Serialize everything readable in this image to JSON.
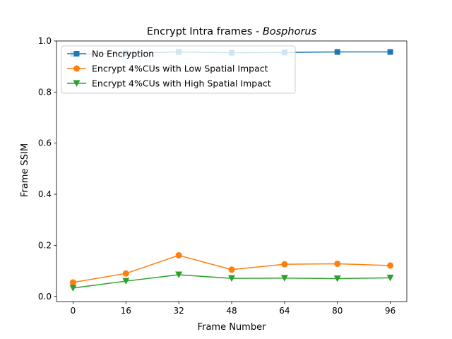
{
  "chart_data": {
    "type": "line",
    "title_prefix": "Encrypt Intra frames - ",
    "title_italic": "Bosphorus",
    "xlabel": "Frame Number",
    "ylabel": "Frame SSIM",
    "x": [
      0,
      16,
      32,
      48,
      64,
      80,
      96
    ],
    "x_ticks": [
      0,
      16,
      32,
      48,
      64,
      80,
      96
    ],
    "y_ticks": [
      "0.0",
      "0.2",
      "0.4",
      "0.6",
      "0.8",
      "1.0"
    ],
    "xlim": [
      -5,
      101
    ],
    "ylim": [
      -0.02,
      1.0
    ],
    "grid": false,
    "legend_position": "upper-left",
    "series": [
      {
        "name": "No Encryption",
        "marker": "square",
        "color": "#1f77b4",
        "values": [
          0.948,
          0.952,
          0.957,
          0.954,
          0.955,
          0.957,
          0.957
        ]
      },
      {
        "name": "Encrypt 4%CUs with Low Spatial Impact",
        "marker": "circle",
        "color": "#ff7f0e",
        "values": [
          0.055,
          0.09,
          0.161,
          0.105,
          0.126,
          0.128,
          0.121
        ]
      },
      {
        "name": "Encrypt 4%CUs with High Spatial Impact",
        "marker": "triangle-down",
        "color": "#2ca02c",
        "values": [
          0.033,
          0.06,
          0.085,
          0.071,
          0.072,
          0.07,
          0.073
        ]
      }
    ]
  }
}
